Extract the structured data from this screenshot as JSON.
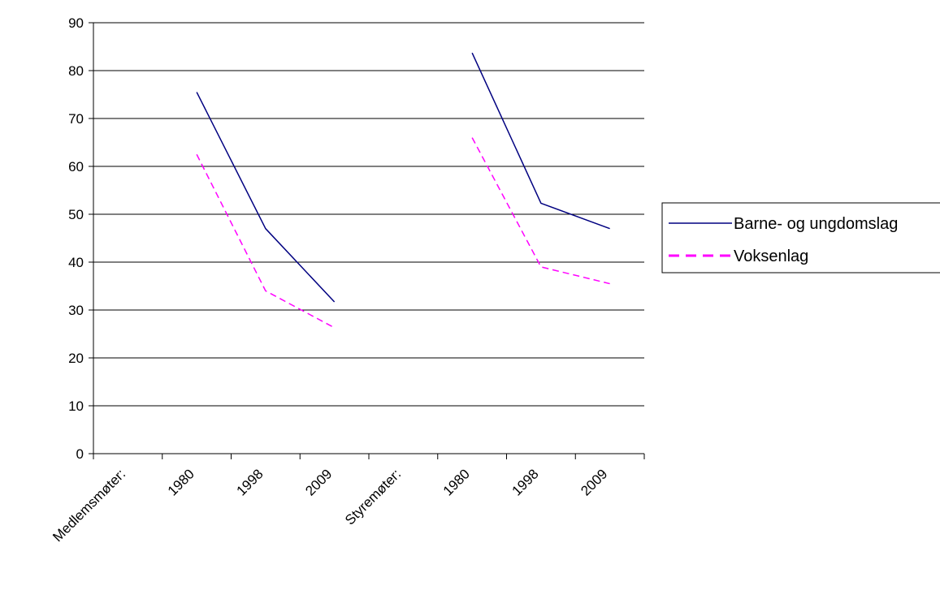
{
  "chart_data": {
    "type": "line",
    "categories": [
      "Medlemsmøter:",
      "1980",
      "1998",
      "2009",
      "Styremøter:",
      "1980",
      "1998",
      "2009"
    ],
    "ylim": [
      0,
      90
    ],
    "yticks": [
      0,
      10,
      20,
      30,
      40,
      50,
      60,
      70,
      80,
      90
    ],
    "grid": true,
    "legend_position": "right",
    "series": [
      {
        "name": "Barne- og ungdomslag",
        "color": "#000080",
        "dash": "solid",
        "values": [
          null,
          75.5,
          47,
          31.7,
          null,
          83.7,
          52.3,
          47
        ]
      },
      {
        "name": "Voksenlag",
        "color": "#FF00FF",
        "dash": "dashed",
        "values": [
          null,
          62.5,
          34,
          26.3,
          null,
          66,
          39,
          35.5
        ]
      }
    ]
  }
}
